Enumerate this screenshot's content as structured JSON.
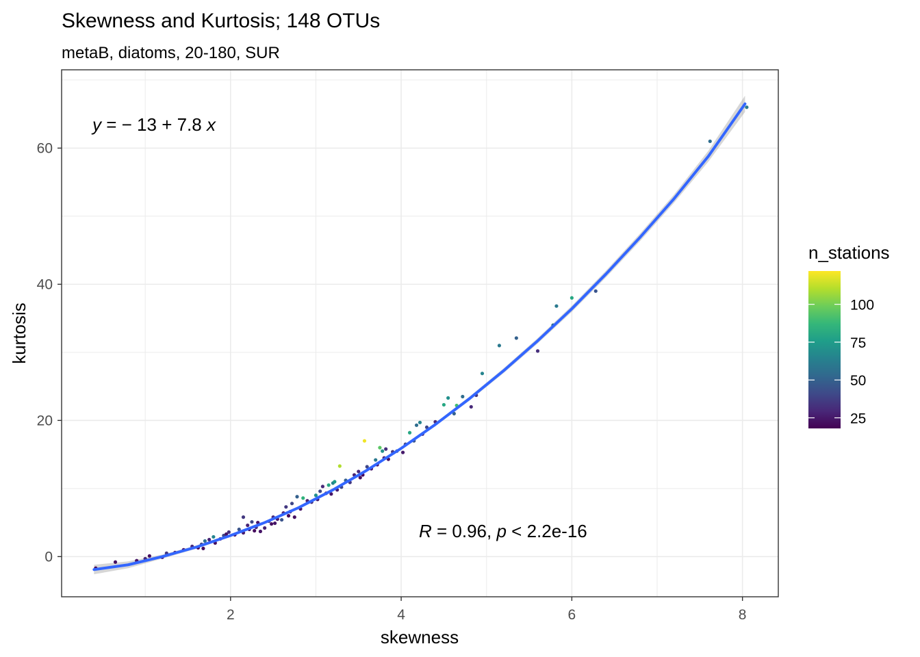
{
  "chart_data": {
    "type": "scatter",
    "title": "Skewness and Kurtosis; 148 OTUs",
    "subtitle": "metaB, diatoms, 20-180, SUR",
    "xlabel": "skewness",
    "ylabel": "kurtosis",
    "xlim": [
      0.02,
      8.42
    ],
    "ylim": [
      -5.9,
      71.5
    ],
    "x_ticks": [
      2,
      4,
      6,
      8
    ],
    "x_minor": [
      1,
      3,
      5,
      7
    ],
    "y_ticks": [
      0,
      20,
      40,
      60
    ],
    "y_minor": [
      10,
      30,
      50,
      70
    ],
    "grid": true,
    "equation_label": {
      "y": "y",
      "eq": " = ",
      "rhs": "− 13 + 7.8 ",
      "x": "x"
    },
    "correlation_label": {
      "r": "R",
      "r_text": " = 0.96, ",
      "p": "p",
      "p_text": " < 2.2e-16"
    },
    "legend": {
      "title": "n_stations",
      "position": "right",
      "min": 18,
      "max": 122,
      "breaks": [
        25,
        50,
        75,
        100
      ],
      "break_labels": [
        "25",
        "50",
        "75",
        "100"
      ]
    },
    "colors": {
      "fit_line": "#3366FF",
      "ribbon": "#999999",
      "grid": "#EBEBEB",
      "panel_border": "#333333",
      "viridis": [
        "#440154",
        "#482878",
        "#3E4A89",
        "#31688E",
        "#26828E",
        "#1F9E89",
        "#35B779",
        "#6DCD59",
        "#B4DE2C",
        "#FDE725"
      ]
    },
    "fit": {
      "method": "loess",
      "points": [
        [
          0.4,
          -1.9
        ],
        [
          0.8,
          -1.2
        ],
        [
          1.2,
          0.0
        ],
        [
          1.6,
          1.4
        ],
        [
          2.0,
          3.1
        ],
        [
          2.4,
          5.0
        ],
        [
          2.8,
          7.2
        ],
        [
          3.2,
          9.8
        ],
        [
          3.6,
          12.7
        ],
        [
          4.0,
          15.9
        ],
        [
          4.4,
          19.4
        ],
        [
          4.8,
          23.2
        ],
        [
          5.2,
          27.3
        ],
        [
          5.6,
          31.7
        ],
        [
          6.0,
          36.4
        ],
        [
          6.4,
          41.5
        ],
        [
          6.8,
          46.9
        ],
        [
          7.2,
          52.6
        ],
        [
          7.6,
          58.8
        ],
        [
          8.03,
          66.5
        ]
      ],
      "ribbon_halfwidth": [
        0.7,
        0.5,
        0.3,
        0.25,
        0.2,
        0.2,
        0.2,
        0.2,
        0.2,
        0.22,
        0.25,
        0.3,
        0.35,
        0.4,
        0.45,
        0.5,
        0.55,
        0.6,
        0.8,
        1.2
      ]
    },
    "points": [
      {
        "x": 0.42,
        "y": -1.7,
        "n": 20
      },
      {
        "x": 0.65,
        "y": -0.8,
        "n": 22
      },
      {
        "x": 0.9,
        "y": -0.6,
        "n": 24
      },
      {
        "x": 1.0,
        "y": -0.3,
        "n": 30
      },
      {
        "x": 1.05,
        "y": 0.1,
        "n": 22
      },
      {
        "x": 1.2,
        "y": -0.1,
        "n": 26
      },
      {
        "x": 1.25,
        "y": 0.5,
        "n": 35
      },
      {
        "x": 1.35,
        "y": 0.6,
        "n": 28
      },
      {
        "x": 1.45,
        "y": 1.0,
        "n": 24
      },
      {
        "x": 1.55,
        "y": 1.5,
        "n": 30
      },
      {
        "x": 1.62,
        "y": 1.3,
        "n": 20
      },
      {
        "x": 1.66,
        "y": 1.8,
        "n": 40
      },
      {
        "x": 1.68,
        "y": 1.2,
        "n": 21
      },
      {
        "x": 1.7,
        "y": 2.3,
        "n": 55
      },
      {
        "x": 1.75,
        "y": 2.5,
        "n": 28
      },
      {
        "x": 1.8,
        "y": 2.9,
        "n": 65
      },
      {
        "x": 1.82,
        "y": 2.0,
        "n": 22
      },
      {
        "x": 1.88,
        "y": 2.6,
        "n": 25
      },
      {
        "x": 1.92,
        "y": 3.1,
        "n": 40
      },
      {
        "x": 1.95,
        "y": 3.3,
        "n": 24
      },
      {
        "x": 1.98,
        "y": 3.6,
        "n": 32
      },
      {
        "x": 2.05,
        "y": 3.2,
        "n": 23
      },
      {
        "x": 2.1,
        "y": 4.0,
        "n": 45
      },
      {
        "x": 2.15,
        "y": 3.5,
        "n": 26
      },
      {
        "x": 2.15,
        "y": 5.8,
        "n": 35
      },
      {
        "x": 2.2,
        "y": 4.6,
        "n": 28
      },
      {
        "x": 2.22,
        "y": 4.0,
        "n": 22
      },
      {
        "x": 2.25,
        "y": 5.1,
        "n": 40
      },
      {
        "x": 2.28,
        "y": 3.8,
        "n": 21
      },
      {
        "x": 2.3,
        "y": 4.3,
        "n": 30
      },
      {
        "x": 2.32,
        "y": 5.0,
        "n": 24
      },
      {
        "x": 2.35,
        "y": 3.7,
        "n": 24
      },
      {
        "x": 2.4,
        "y": 4.2,
        "n": 28
      },
      {
        "x": 2.45,
        "y": 5.2,
        "n": 35
      },
      {
        "x": 2.48,
        "y": 4.8,
        "n": 22
      },
      {
        "x": 2.5,
        "y": 5.8,
        "n": 30
      },
      {
        "x": 2.52,
        "y": 4.9,
        "n": 24
      },
      {
        "x": 2.55,
        "y": 5.5,
        "n": 26
      },
      {
        "x": 2.6,
        "y": 5.4,
        "n": 45
      },
      {
        "x": 2.62,
        "y": 6.4,
        "n": 28
      },
      {
        "x": 2.65,
        "y": 7.3,
        "n": 35
      },
      {
        "x": 2.68,
        "y": 6.0,
        "n": 20
      },
      {
        "x": 2.7,
        "y": 6.6,
        "n": 30
      },
      {
        "x": 2.72,
        "y": 7.8,
        "n": 40
      },
      {
        "x": 2.75,
        "y": 5.8,
        "n": 22
      },
      {
        "x": 2.78,
        "y": 8.8,
        "n": 50
      },
      {
        "x": 2.82,
        "y": 7.0,
        "n": 24
      },
      {
        "x": 2.85,
        "y": 8.6,
        "n": 85
      },
      {
        "x": 2.9,
        "y": 8.2,
        "n": 28
      },
      {
        "x": 2.95,
        "y": 8.0,
        "n": 32
      },
      {
        "x": 3.0,
        "y": 9.0,
        "n": 70
      },
      {
        "x": 3.02,
        "y": 8.4,
        "n": 25
      },
      {
        "x": 3.05,
        "y": 9.6,
        "n": 40
      },
      {
        "x": 3.08,
        "y": 10.3,
        "n": 30
      },
      {
        "x": 3.12,
        "y": 9.3,
        "n": 22
      },
      {
        "x": 3.15,
        "y": 10.5,
        "n": 80
      },
      {
        "x": 3.18,
        "y": 9.2,
        "n": 24
      },
      {
        "x": 3.2,
        "y": 10.8,
        "n": 65
      },
      {
        "x": 3.22,
        "y": 11.0,
        "n": 75
      },
      {
        "x": 3.25,
        "y": 9.8,
        "n": 26
      },
      {
        "x": 3.28,
        "y": 13.3,
        "n": 110
      },
      {
        "x": 3.3,
        "y": 10.2,
        "n": 40
      },
      {
        "x": 3.35,
        "y": 11.2,
        "n": 50
      },
      {
        "x": 3.4,
        "y": 10.9,
        "n": 35
      },
      {
        "x": 3.45,
        "y": 12.0,
        "n": 28
      },
      {
        "x": 3.5,
        "y": 12.5,
        "n": 30
      },
      {
        "x": 3.52,
        "y": 11.6,
        "n": 22
      },
      {
        "x": 3.55,
        "y": 12.0,
        "n": 20
      },
      {
        "x": 3.57,
        "y": 17.0,
        "n": 120
      },
      {
        "x": 3.6,
        "y": 13.2,
        "n": 40
      },
      {
        "x": 3.65,
        "y": 12.9,
        "n": 26
      },
      {
        "x": 3.7,
        "y": 14.2,
        "n": 60
      },
      {
        "x": 3.72,
        "y": 13.5,
        "n": 24
      },
      {
        "x": 3.75,
        "y": 16.0,
        "n": 95
      },
      {
        "x": 3.78,
        "y": 15.5,
        "n": 70
      },
      {
        "x": 3.8,
        "y": 14.5,
        "n": 28
      },
      {
        "x": 3.82,
        "y": 15.8,
        "n": 32
      },
      {
        "x": 3.85,
        "y": 14.3,
        "n": 22
      },
      {
        "x": 3.9,
        "y": 15.4,
        "n": 35
      },
      {
        "x": 3.95,
        "y": 15.5,
        "n": 45
      },
      {
        "x": 4.02,
        "y": 15.3,
        "n": 25
      },
      {
        "x": 4.05,
        "y": 16.5,
        "n": 40
      },
      {
        "x": 4.1,
        "y": 18.2,
        "n": 80
      },
      {
        "x": 4.15,
        "y": 17.0,
        "n": 45
      },
      {
        "x": 4.18,
        "y": 19.3,
        "n": 55
      },
      {
        "x": 4.22,
        "y": 19.7,
        "n": 65
      },
      {
        "x": 4.25,
        "y": 18.0,
        "n": 28
      },
      {
        "x": 4.3,
        "y": 19.0,
        "n": 40
      },
      {
        "x": 4.4,
        "y": 19.8,
        "n": 30
      },
      {
        "x": 4.5,
        "y": 22.3,
        "n": 80
      },
      {
        "x": 4.55,
        "y": 23.3,
        "n": 70
      },
      {
        "x": 4.62,
        "y": 21.0,
        "n": 50
      },
      {
        "x": 4.65,
        "y": 22.2,
        "n": 90
      },
      {
        "x": 4.72,
        "y": 23.5,
        "n": 55
      },
      {
        "x": 4.82,
        "y": 22.0,
        "n": 30
      },
      {
        "x": 4.88,
        "y": 23.7,
        "n": 35
      },
      {
        "x": 4.95,
        "y": 26.9,
        "n": 65
      },
      {
        "x": 5.15,
        "y": 31.0,
        "n": 60
      },
      {
        "x": 5.35,
        "y": 32.1,
        "n": 50
      },
      {
        "x": 5.6,
        "y": 30.2,
        "n": 32
      },
      {
        "x": 5.78,
        "y": 34.0,
        "n": 55
      },
      {
        "x": 5.82,
        "y": 36.8,
        "n": 60
      },
      {
        "x": 6.0,
        "y": 38.0,
        "n": 80
      },
      {
        "x": 6.28,
        "y": 39.0,
        "n": 45
      },
      {
        "x": 7.62,
        "y": 61.0,
        "n": 55
      },
      {
        "x": 8.05,
        "y": 66.0,
        "n": 60
      }
    ]
  }
}
